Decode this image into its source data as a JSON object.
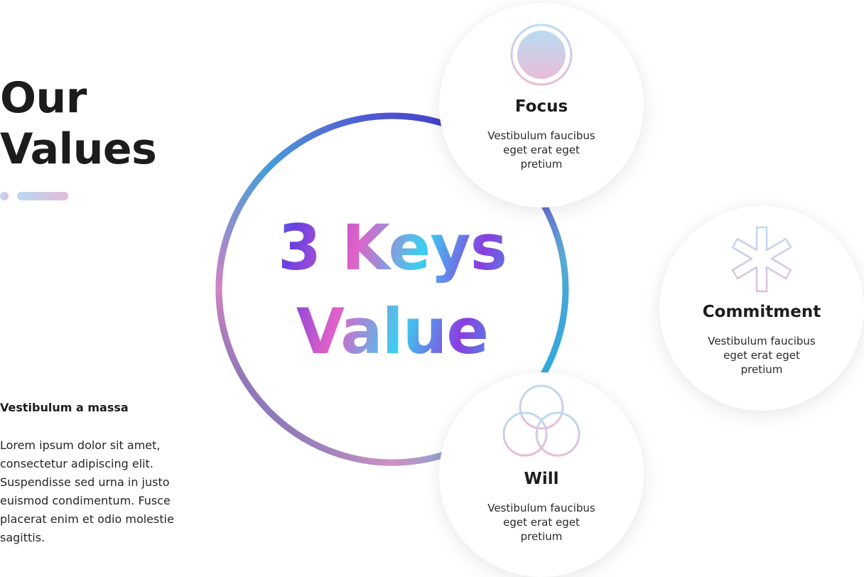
{
  "title": {
    "line1": "Our",
    "line2": "Values"
  },
  "subhead": "Vestibulum a massa",
  "body": "Lorem ipsum dolor sit amet, consectetur adipiscing elit. Suspendisse sed urna in justo euismod condimentum. Fusce placerat enim et odio molestie sagittis.",
  "center": {
    "line1": "3 Keys",
    "line2": "Value"
  },
  "cards": [
    {
      "title": "Focus",
      "description": "Vestibulum faucibus eget erat eget pretium",
      "icon": "circle-icon"
    },
    {
      "title": "Commitment",
      "description": "Vestibulum faucibus eget erat eget pretium",
      "icon": "asterisk-icon"
    },
    {
      "title": "Will",
      "description": "Vestibulum faucibus eget erat eget pretium",
      "icon": "three-circles-icon"
    }
  ],
  "colors": {
    "accent_blue": "#b9d8f2",
    "accent_pink": "#e3bcd6",
    "ring_purple": "#5a3ed0",
    "ring_cyan": "#2ab6e0",
    "ring_pink": "#e07ab8",
    "text_dark": "#1c1c1c"
  }
}
